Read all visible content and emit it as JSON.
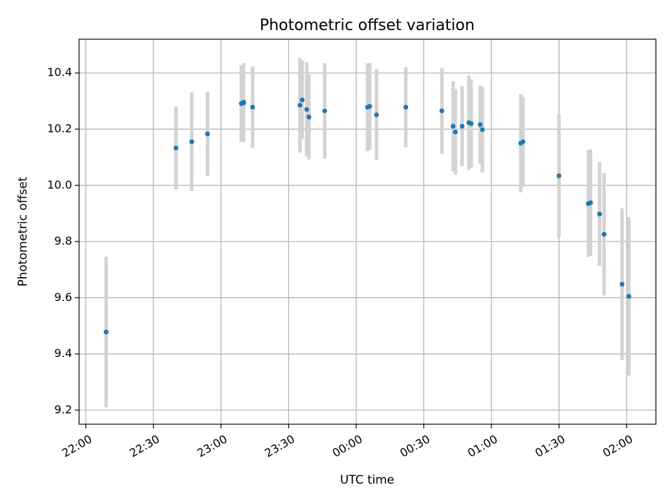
{
  "chart_data": {
    "type": "scatter",
    "title": "Photometric offset variation",
    "xlabel": "UTC time",
    "ylabel": "Photometric offset",
    "grid": true,
    "errorbar_color": "#d3d3d3",
    "point_color": "#1f77b4",
    "x_ticks": [
      "22:00",
      "22:30",
      "23:00",
      "23:30",
      "00:00",
      "00:30",
      "01:00",
      "01:30",
      "02:00"
    ],
    "x_range": [
      "21:57",
      "02:13"
    ],
    "ylim": [
      9.15,
      10.52
    ],
    "y_ticks": [
      "9.2",
      "9.4",
      "9.6",
      "9.8",
      "10.0",
      "10.2",
      "10.4"
    ],
    "points": [
      {
        "x": "22:09",
        "y": 9.478,
        "err": 0.268
      },
      {
        "x": "22:40",
        "y": 10.133,
        "err": 0.148
      },
      {
        "x": "22:47",
        "y": 10.155,
        "err": 0.175
      },
      {
        "x": "22:54",
        "y": 10.183,
        "err": 0.15
      },
      {
        "x": "23:09",
        "y": 10.291,
        "err": 0.137
      },
      {
        "x": "23:10",
        "y": 10.293,
        "err": 0.139
      },
      {
        "x": "23:10",
        "y": 10.296,
        "err": 0.139
      },
      {
        "x": "23:14",
        "y": 10.278,
        "err": 0.145
      },
      {
        "x": "23:35",
        "y": 10.285,
        "err": 0.168
      },
      {
        "x": "23:36",
        "y": 10.304,
        "err": 0.14
      },
      {
        "x": "23:38",
        "y": 10.27,
        "err": 0.168
      },
      {
        "x": "23:39",
        "y": 10.243,
        "err": 0.151
      },
      {
        "x": "23:46",
        "y": 10.265,
        "err": 0.17
      },
      {
        "x": "00:05",
        "y": 10.278,
        "err": 0.156
      },
      {
        "x": "00:06",
        "y": 10.281,
        "err": 0.155
      },
      {
        "x": "00:09",
        "y": 10.251,
        "err": 0.162
      },
      {
        "x": "00:22",
        "y": 10.278,
        "err": 0.143
      },
      {
        "x": "00:38",
        "y": 10.265,
        "err": 0.152
      },
      {
        "x": "00:43",
        "y": 10.21,
        "err": 0.16
      },
      {
        "x": "00:44",
        "y": 10.19,
        "err": 0.152
      },
      {
        "x": "00:47",
        "y": 10.21,
        "err": 0.142
      },
      {
        "x": "00:50",
        "y": 10.223,
        "err": 0.168
      },
      {
        "x": "00:51",
        "y": 10.22,
        "err": 0.157
      },
      {
        "x": "00:55",
        "y": 10.216,
        "err": 0.138
      },
      {
        "x": "00:56",
        "y": 10.198,
        "err": 0.152
      },
      {
        "x": "01:13",
        "y": 10.15,
        "err": 0.175
      },
      {
        "x": "01:14",
        "y": 10.155,
        "err": 0.16
      },
      {
        "x": "01:30",
        "y": 10.034,
        "err": 0.22
      },
      {
        "x": "01:43",
        "y": 9.935,
        "err": 0.19
      },
      {
        "x": "01:44",
        "y": 9.938,
        "err": 0.19
      },
      {
        "x": "01:48",
        "y": 9.898,
        "err": 0.185
      },
      {
        "x": "01:50",
        "y": 9.826,
        "err": 0.218
      },
      {
        "x": "01:58",
        "y": 9.648,
        "err": 0.27
      },
      {
        "x": "02:01",
        "y": 9.605,
        "err": 0.282
      }
    ]
  }
}
